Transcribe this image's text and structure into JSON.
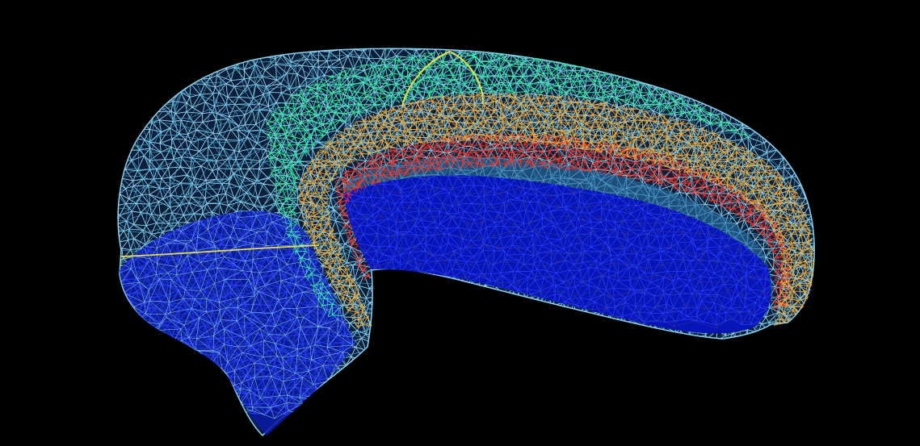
{
  "scene": {
    "background_color": "#000000",
    "render_style": "wireframe",
    "colors": {
      "outer_shell": "#8fd3f0",
      "outer_shell_dark": "#4fb0d8",
      "inner_cavity": "#0a1fd8",
      "inner_cavity_light": "#2840ff",
      "green_band": "#2cf0a0",
      "orange_band": "#ffa41a",
      "red_band": "#ff2a1a",
      "yellow_path": "#e8e040"
    }
  }
}
